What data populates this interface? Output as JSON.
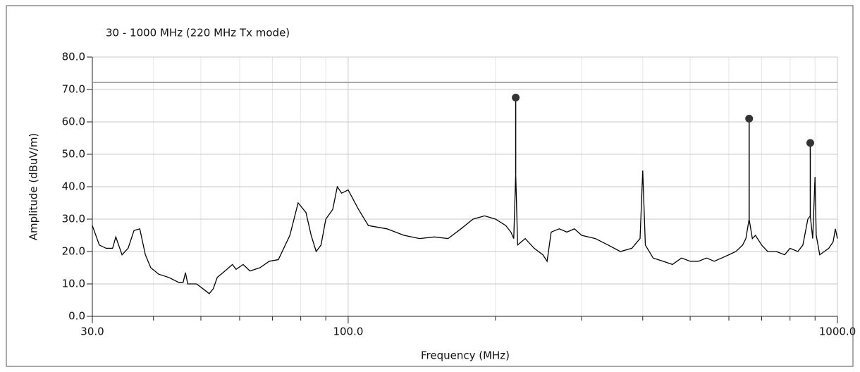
{
  "chart_data": {
    "type": "line",
    "title": "30 - 1000 MHz (220 MHz Tx mode)",
    "x_label": "Frequency (MHz)",
    "y_label": "Amplitude (dBuV/m)",
    "log_x": true,
    "grid": true,
    "xlim": [
      30,
      1000
    ],
    "ylim": [
      0,
      80
    ],
    "xticks": [
      {
        "value": 30,
        "label": "30.0"
      },
      {
        "value": 100,
        "label": "100.0"
      },
      {
        "value": 1000,
        "label": "1000.0"
      }
    ],
    "xminorticks": [
      40,
      50,
      60,
      70,
      80,
      90,
      200,
      300,
      400,
      500,
      600,
      700,
      800,
      900
    ],
    "yticks": [
      {
        "value": 0,
        "label": "0.0"
      },
      {
        "value": 10,
        "label": "10.0"
      },
      {
        "value": 20,
        "label": "20.0"
      },
      {
        "value": 30,
        "label": "30.0"
      },
      {
        "value": 40,
        "label": "40.0"
      },
      {
        "value": 50,
        "label": "50.0"
      },
      {
        "value": 60,
        "label": "60.0"
      },
      {
        "value": 70,
        "label": "70.0"
      },
      {
        "value": 80,
        "label": "80.0"
      }
    ],
    "limit_line": 72.2,
    "limit_color": "#888888",
    "color": "#000000",
    "x": [
      30,
      31,
      32,
      33,
      33.5,
      34.5,
      35.5,
      36.5,
      37.5,
      38.5,
      39.5,
      41,
      43,
      45,
      46,
      46.5,
      47,
      49,
      51,
      52,
      53,
      54,
      56,
      58,
      59,
      61,
      63,
      66,
      69,
      72,
      76,
      79,
      80,
      82,
      84,
      86,
      88,
      90,
      93,
      95,
      97,
      100,
      105,
      110,
      120,
      130,
      140,
      150,
      160,
      170,
      180,
      190,
      200,
      210,
      215,
      218,
      220,
      222,
      230,
      240,
      250,
      255,
      260,
      270,
      280,
      290,
      300,
      320,
      340,
      360,
      380,
      395,
      400,
      405,
      420,
      440,
      460,
      480,
      500,
      520,
      540,
      560,
      580,
      600,
      620,
      640,
      650,
      660,
      670,
      680,
      700,
      720,
      750,
      780,
      800,
      830,
      850,
      870,
      880,
      890,
      900,
      905,
      920,
      940,
      960,
      980,
      990,
      1000
    ],
    "values": [
      28,
      22,
      21,
      21,
      24.5,
      19,
      21,
      26.5,
      27,
      19,
      15,
      13,
      12,
      10.5,
      10.5,
      13.5,
      10,
      10,
      8,
      7,
      8.5,
      12,
      14,
      16,
      14.5,
      16,
      14,
      15,
      17,
      17.5,
      25,
      35,
      34,
      32,
      25,
      20,
      22,
      30,
      33,
      40,
      38,
      39,
      33,
      28,
      27,
      25,
      24,
      24.5,
      24,
      27,
      30,
      31,
      30,
      28,
      26,
      24,
      44,
      22,
      24,
      21,
      19,
      17,
      26,
      27,
      26,
      27,
      25,
      24,
      22,
      20,
      21,
      24,
      45,
      22,
      18,
      17,
      16,
      18,
      17,
      17,
      18,
      17,
      18,
      19,
      20,
      22,
      24,
      30,
      24,
      25,
      22,
      20,
      20,
      19,
      21,
      20,
      22,
      30,
      31,
      24,
      43,
      25,
      19,
      20,
      21,
      23,
      27,
      24
    ],
    "peaks": {
      "x": [
        220,
        660,
        880
      ],
      "values": [
        67.5,
        61,
        53.5
      ],
      "color": "#333333"
    }
  }
}
